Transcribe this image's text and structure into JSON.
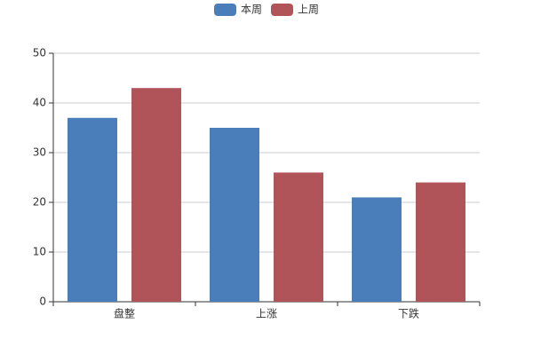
{
  "chart_data": {
    "type": "bar",
    "categories": [
      "盘整",
      "上涨",
      "下跌"
    ],
    "series": [
      {
        "name": "本周",
        "color": "#4a7ebb",
        "values": [
          37,
          35,
          21
        ]
      },
      {
        "name": "上周",
        "color": "#b0545a",
        "values": [
          43,
          26,
          24
        ]
      }
    ],
    "ylim": [
      0,
      50
    ],
    "yticks": [
      0,
      10,
      20,
      30,
      40,
      50
    ],
    "grid": true,
    "legend": "top"
  }
}
